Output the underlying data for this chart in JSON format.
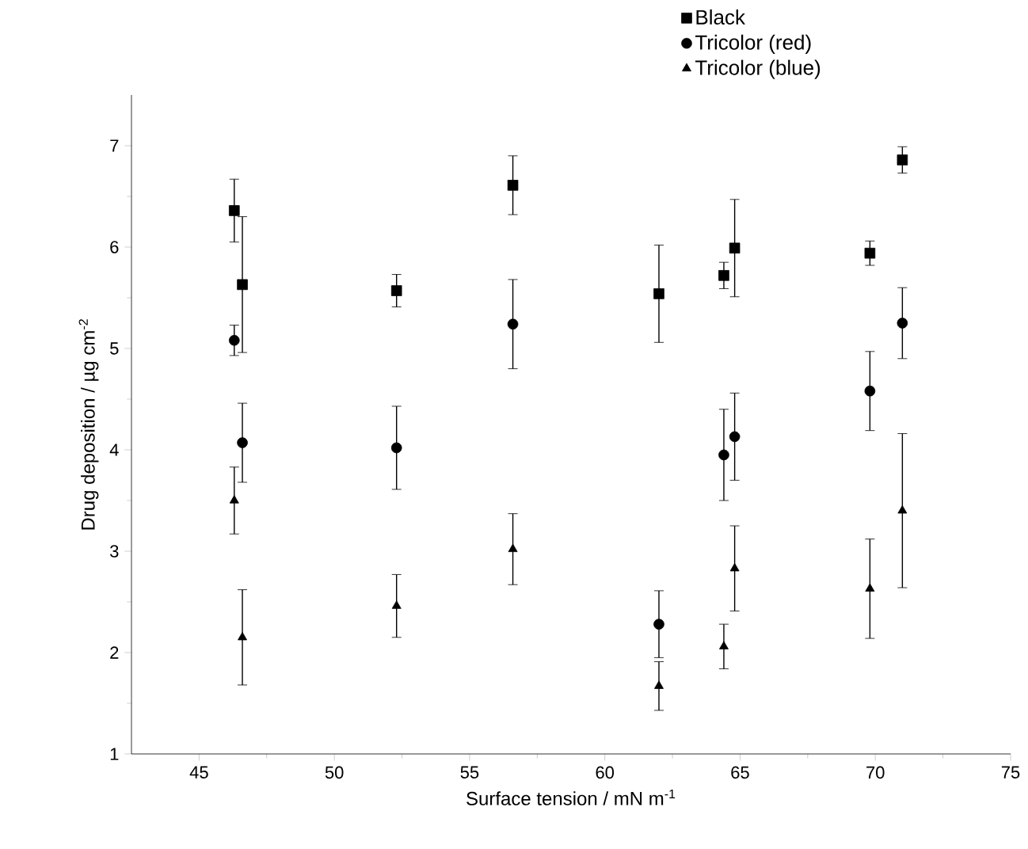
{
  "chart_data": {
    "type": "scatter",
    "xlabel": "Surface tension / mN m$^{-1}$",
    "ylabel": "Drug deposition / µg cm$^{-2}$",
    "xlim": [
      42.5,
      75
    ],
    "ylim": [
      1,
      7.5
    ],
    "xticks": [
      45,
      50,
      55,
      60,
      65,
      70,
      75
    ],
    "yticks": [
      1,
      2,
      3,
      4,
      5,
      6,
      7
    ],
    "legend": "top",
    "grid": false,
    "series": [
      {
        "name": "Black",
        "color": "#000000",
        "marker": "square",
        "x": [
          46.3,
          46.6,
          52.3,
          56.6,
          62,
          64.4,
          64.8,
          69.8,
          71
        ],
        "values": [
          6.36,
          5.63,
          5.57,
          6.61,
          5.54,
          5.72,
          5.99,
          5.94,
          6.86
        ],
        "errors": [
          0.31,
          0.67,
          0.16,
          0.29,
          0.48,
          0.13,
          0.48,
          0.12,
          0.13
        ]
      },
      {
        "name": "Tricolor (red)",
        "color": "#000000",
        "marker": "circle",
        "x": [
          46.3,
          46.6,
          52.3,
          56.6,
          62,
          64.4,
          64.8,
          69.8,
          71
        ],
        "values": [
          5.08,
          4.07,
          4.02,
          5.24,
          2.28,
          3.95,
          4.13,
          4.58,
          5.25
        ],
        "errors": [
          0.15,
          0.39,
          0.41,
          0.44,
          0.33,
          0.45,
          0.43,
          0.39,
          0.35
        ]
      },
      {
        "name": "Tricolor (blue)",
        "color": "#000000",
        "marker": "triangle",
        "x": [
          46.3,
          46.6,
          52.3,
          56.6,
          62,
          64.4,
          64.8,
          69.8,
          71
        ],
        "values": [
          3.5,
          2.15,
          2.46,
          3.02,
          1.67,
          2.06,
          2.83,
          2.63,
          3.4
        ],
        "errors": [
          0.33,
          0.47,
          0.31,
          0.35,
          0.24,
          0.22,
          0.42,
          0.49,
          0.76
        ]
      }
    ]
  }
}
